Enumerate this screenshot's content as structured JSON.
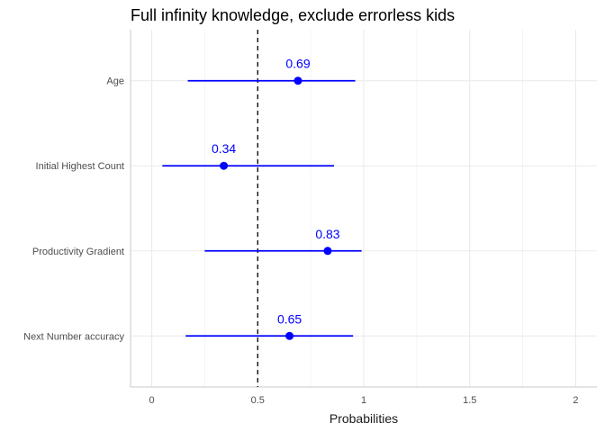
{
  "chart_data": {
    "type": "scatter",
    "title": "Full infinity knowledge, exclude errorless kids",
    "xlabel": "Probabilities",
    "ylabel": "",
    "xlim": [
      -0.1,
      2.1
    ],
    "x_ticks": [
      0,
      0.5,
      1,
      1.5,
      2
    ],
    "x_tick_labels": [
      "0",
      "0.5",
      "1",
      "1.5",
      "2"
    ],
    "x_minor_ticks": [
      0.25,
      0.75,
      1.25,
      1.75
    ],
    "reference_line": {
      "x": 0.5,
      "style": "dashed",
      "color": "#000000"
    },
    "grid": true,
    "point_color": "#0000ff",
    "categories": [
      "Age",
      "Initial Highest Count",
      "Productivity Gradient",
      "Next Number accuracy"
    ],
    "points": [
      {
        "category": "Age",
        "estimate": 0.69,
        "lower": 0.17,
        "upper": 0.96,
        "label": "0.69"
      },
      {
        "category": "Initial Highest Count",
        "estimate": 0.34,
        "lower": 0.05,
        "upper": 0.86,
        "label": "0.34"
      },
      {
        "category": "Productivity Gradient",
        "estimate": 0.83,
        "lower": 0.25,
        "upper": 0.99,
        "label": "0.83"
      },
      {
        "category": "Next Number accuracy",
        "estimate": 0.65,
        "lower": 0.16,
        "upper": 0.95,
        "label": "0.65"
      }
    ]
  }
}
